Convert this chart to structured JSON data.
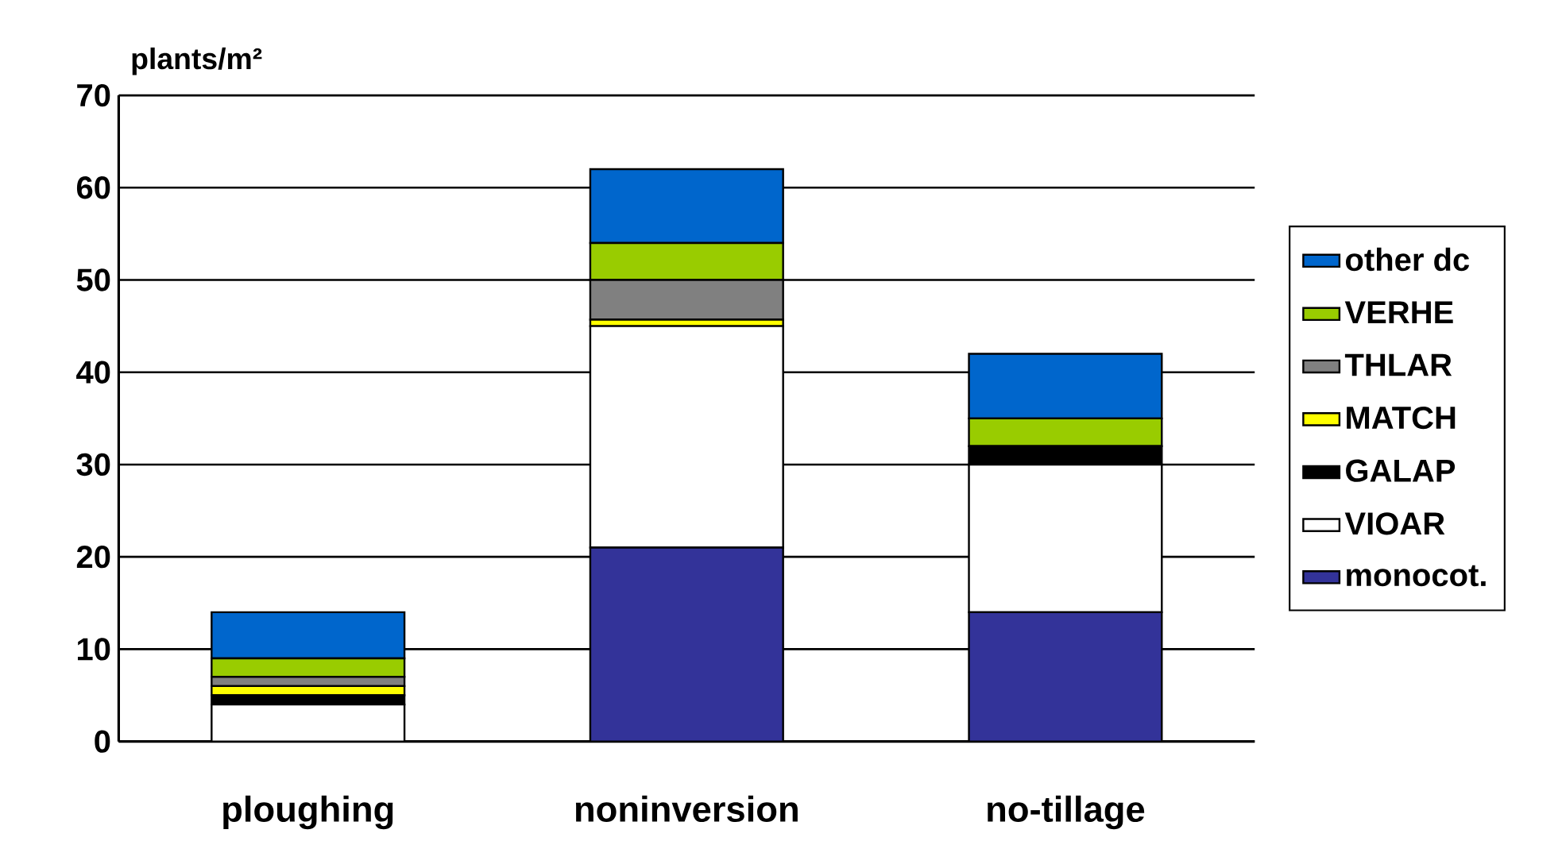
{
  "chart_data": {
    "type": "bar",
    "stacked": true,
    "ylabel": "plants/m²",
    "categories": [
      "ploughing",
      "noninversion",
      "no-tillage"
    ],
    "series": [
      {
        "name": "monocot.",
        "color": "#333399",
        "values": [
          0,
          21,
          14
        ]
      },
      {
        "name": "VIOAR",
        "color": "#ffffff",
        "values": [
          4,
          24,
          16
        ]
      },
      {
        "name": "GALAP",
        "color": "#000000",
        "values": [
          1,
          0,
          2
        ]
      },
      {
        "name": "MATCH",
        "color": "#ffff00",
        "values": [
          1,
          0.7,
          0
        ]
      },
      {
        "name": "THLAR",
        "color": "#808080",
        "values": [
          1,
          4.3,
          0
        ]
      },
      {
        "name": "VERHE",
        "color": "#99cc00",
        "values": [
          2,
          4,
          3
        ]
      },
      {
        "name": "other dc",
        "color": "#0066cc",
        "values": [
          5,
          8,
          7
        ]
      }
    ],
    "ylim": [
      0,
      70
    ],
    "yticks": [
      0,
      10,
      20,
      30,
      40,
      50,
      60,
      70
    ],
    "grid": "y",
    "legend": "right"
  }
}
